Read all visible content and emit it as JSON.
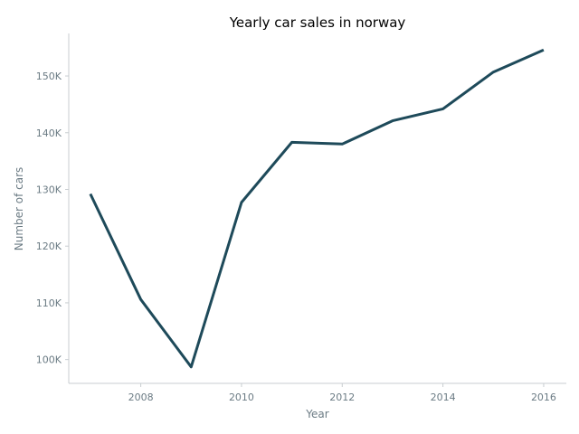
{
  "chart_data": {
    "type": "line",
    "title": "Yearly car sales in norway",
    "xlabel": "Year",
    "ylabel": "Number of cars",
    "x": [
      2007,
      2008,
      2009,
      2010,
      2011,
      2012,
      2013,
      2014,
      2015,
      2016
    ],
    "series": [
      {
        "values": [
          129200,
          110600,
          98700,
          127700,
          138300,
          138000,
          142100,
          144200,
          150700,
          154600
        ]
      }
    ],
    "xlim": [
      2006.57,
      2016.45
    ],
    "ylim": [
      95800,
      157500
    ],
    "xticks": [
      2008,
      2010,
      2012,
      2014,
      2016
    ],
    "xtick_labels": [
      "2008",
      "2010",
      "2012",
      "2014",
      "2016"
    ],
    "yticks": [
      100000,
      110000,
      120000,
      130000,
      140000,
      150000
    ],
    "ytick_labels": [
      "100K",
      "110K",
      "120K",
      "130K",
      "140K",
      "150K"
    ],
    "line_color": "#1e4a5a",
    "grid": false,
    "legend": "none"
  }
}
